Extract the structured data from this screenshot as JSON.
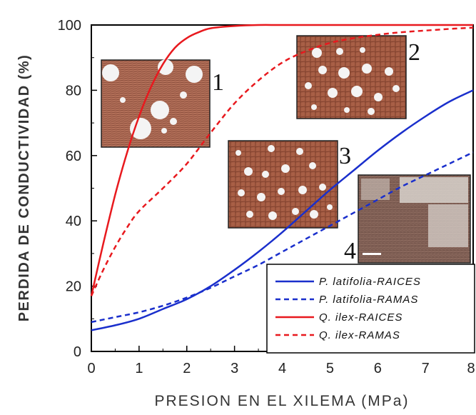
{
  "chart_data": {
    "type": "line",
    "xlabel": "PRESION EN EL XILEMA (MPa)",
    "ylabel": "PERDIDA DE CONDUCTIVIDAD (%)",
    "xlim": [
      0,
      8
    ],
    "ylim": [
      0,
      100
    ],
    "x_ticks": [
      "0",
      "1",
      "2",
      "3",
      "4",
      "5",
      "6",
      "7",
      "8"
    ],
    "y_ticks": [
      "0",
      "20",
      "40",
      "60",
      "80",
      "100"
    ],
    "legend_position": "bottom-right",
    "series": [
      {
        "name": "P. latifolia-RAICES",
        "color": "#1a2fcc",
        "style": "solid",
        "x": [
          0,
          0.5,
          1,
          1.5,
          2,
          2.5,
          3,
          3.5,
          4,
          4.5,
          5,
          5.5,
          6,
          6.5,
          7,
          7.5,
          8
        ],
        "y": [
          6.5,
          8,
          10,
          13,
          16,
          20,
          25,
          30.5,
          36.5,
          43,
          49.5,
          55.5,
          61.5,
          67,
          72,
          76.5,
          80
        ]
      },
      {
        "name": "P. latifolia-RAMAS",
        "color": "#1a2fcc",
        "style": "dashed",
        "x": [
          0,
          0.5,
          1,
          1.5,
          2,
          2.5,
          3,
          3.5,
          4,
          4.5,
          5,
          5.5,
          6,
          6.5,
          7,
          7.5,
          8
        ],
        "y": [
          9,
          10.5,
          12,
          14,
          16.5,
          19.5,
          23,
          26.5,
          30.5,
          34.5,
          38.5,
          42.5,
          46.5,
          50.5,
          54,
          57.5,
          61
        ]
      },
      {
        "name": "Q. ilex-RAICES",
        "color": "#e8191e",
        "style": "solid",
        "x": [
          0,
          0.25,
          0.5,
          0.75,
          1,
          1.25,
          1.5,
          1.75,
          2,
          2.25,
          2.5,
          3,
          3.5,
          4,
          5,
          6,
          7,
          8
        ],
        "y": [
          17,
          33,
          48,
          61,
          72,
          81,
          88,
          93,
          96,
          97.8,
          99,
          99.7,
          100,
          100,
          100,
          100,
          100,
          100
        ]
      },
      {
        "name": "Q. ilex-RAMAS",
        "color": "#e8191e",
        "style": "dashed",
        "x": [
          0,
          0.25,
          0.5,
          0.75,
          1,
          1.5,
          2,
          2.5,
          3,
          3.5,
          4,
          4.5,
          5,
          5.5,
          6,
          6.5,
          7,
          7.5,
          8
        ],
        "y": [
          17,
          25,
          32,
          38,
          43,
          50,
          57.5,
          67,
          76,
          83,
          88.5,
          92,
          94.5,
          96,
          97,
          97.8,
          98.3,
          98.8,
          99.2
        ]
      }
    ],
    "micrograph_labels": [
      "1",
      "2",
      "3",
      "4"
    ]
  }
}
